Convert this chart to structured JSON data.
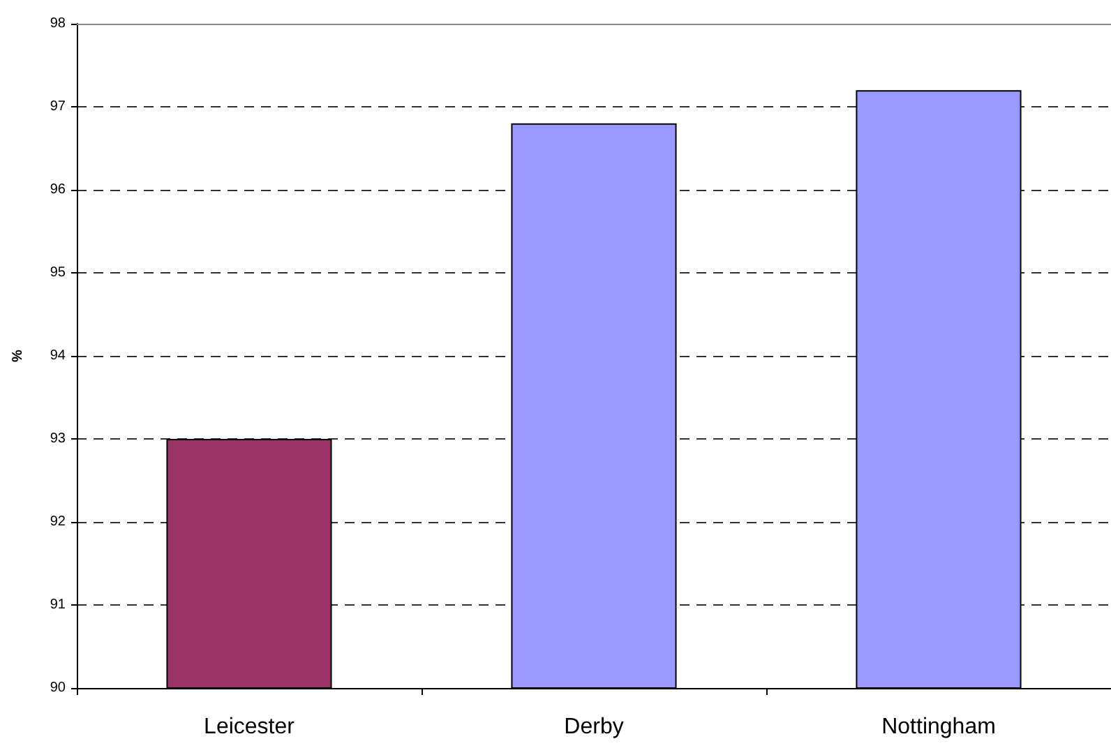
{
  "chart_data": {
    "type": "bar",
    "ylabel": "%",
    "categories": [
      "Leicester",
      "Derby",
      "Nottingham"
    ],
    "values": [
      93,
      96.8,
      97.2
    ],
    "colors": [
      "#993366",
      "#9999ff",
      "#9999ff"
    ],
    "ylim": [
      90,
      98
    ],
    "yticks": [
      90,
      91,
      92,
      93,
      94,
      95,
      96,
      97,
      98
    ],
    "grid": "y"
  }
}
